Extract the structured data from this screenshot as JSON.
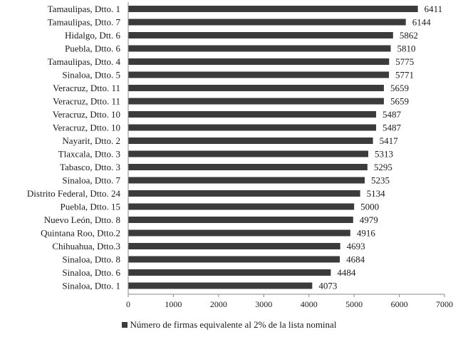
{
  "chart_data": {
    "type": "bar",
    "orientation": "horizontal",
    "categories": [
      "Tamaulipas, Dtto. 1",
      "Tamaulipas, Dtto. 7",
      "Hidalgo, Dtt. 6",
      "Puebla, Dtto. 6",
      "Tamaulipas, Dtto. 4",
      "Sinaloa, Dtto. 5",
      "Veracruz, Dtto. 11",
      "Veracruz, Dtto. 11",
      "Veracruz, Dtto. 10",
      "Veracruz, Dtto. 10",
      "Nayarit, Dtto. 2",
      "Tlaxcala, Dtto. 3",
      "Tabasco, Dtto. 3",
      "Sinaloa, Dtto. 7",
      "Distrito Federal, Dtto. 24",
      "Puebla, Dtto. 15",
      "Nuevo León, Dtto. 8",
      "Quintana Roo, Dtto.2",
      "Chihuahua, Dtto.3",
      "Sinaloa, Dtto. 8",
      "Sinaloa, Dtto. 6",
      "Sinaloa, Dtto. 1"
    ],
    "series": [
      {
        "name": "Número de firmas equivalente al 2% de la lista nominal",
        "values": [
          6411,
          6144,
          5862,
          5810,
          5775,
          5771,
          5659,
          5659,
          5487,
          5487,
          5417,
          5313,
          5295,
          5235,
          5134,
          5000,
          4979,
          4916,
          4693,
          4684,
          4484,
          4073
        ],
        "color": "#3b3b3b"
      }
    ],
    "xlim": [
      0,
      7000
    ],
    "xticks": [
      0,
      1000,
      2000,
      3000,
      4000,
      5000,
      6000,
      7000
    ],
    "grid": false,
    "legend_position": "bottom"
  }
}
